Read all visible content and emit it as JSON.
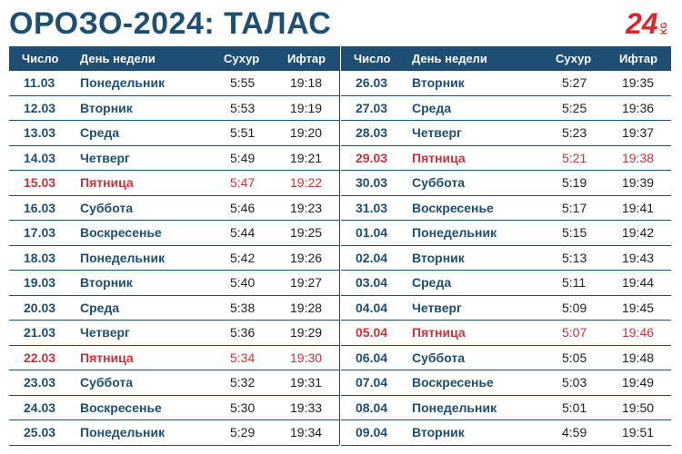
{
  "title": "ОРОЗО-2024: ТАЛАС",
  "logo": {
    "text": "24",
    "suffix": "KG",
    "color": "#d9272e"
  },
  "colors": {
    "header_bg": "#1e4e74",
    "primary": "#1d4f73",
    "highlight": "#c8323c"
  },
  "columns": {
    "date": "Число",
    "day": "День недели",
    "suhur": "Сухур",
    "iftar": "Ифтар"
  },
  "left": [
    {
      "date": "11.03",
      "day": "Понедельник",
      "suhur": "5:55",
      "iftar": "19:18",
      "highlight": false
    },
    {
      "date": "12.03",
      "day": "Вторник",
      "suhur": "5:53",
      "iftar": "19:19",
      "highlight": false
    },
    {
      "date": "13.03",
      "day": "Среда",
      "suhur": "5:51",
      "iftar": "19:20",
      "highlight": false
    },
    {
      "date": "14.03",
      "day": "Четверг",
      "suhur": "5:49",
      "iftar": "19:21",
      "highlight": false
    },
    {
      "date": "15.03",
      "day": "Пятница",
      "suhur": "5:47",
      "iftar": "19:22",
      "highlight": true
    },
    {
      "date": "16.03",
      "day": "Суббота",
      "suhur": "5:46",
      "iftar": "19:23",
      "highlight": false
    },
    {
      "date": "17.03",
      "day": "Воскресенье",
      "suhur": "5:44",
      "iftar": "19:25",
      "highlight": false
    },
    {
      "date": "18.03",
      "day": "Понедельник",
      "suhur": "5:42",
      "iftar": "19:26",
      "highlight": false
    },
    {
      "date": "19.03",
      "day": "Вторник",
      "suhur": "5:40",
      "iftar": "19:27",
      "highlight": false
    },
    {
      "date": "20.03",
      "day": "Среда",
      "suhur": "5:38",
      "iftar": "19:28",
      "highlight": false
    },
    {
      "date": "21.03",
      "day": "Четверг",
      "suhur": "5:36",
      "iftar": "19:29",
      "highlight": false
    },
    {
      "date": "22.03",
      "day": "Пятница",
      "suhur": "5:34",
      "iftar": "19:30",
      "highlight": true
    },
    {
      "date": "23.03",
      "day": "Суббота",
      "suhur": "5:32",
      "iftar": "19:31",
      "highlight": false
    },
    {
      "date": "24.03",
      "day": "Воскресенье",
      "suhur": "5:30",
      "iftar": "19:33",
      "highlight": false
    },
    {
      "date": "25.03",
      "day": "Понедельник",
      "suhur": "5:29",
      "iftar": "19:34",
      "highlight": false
    }
  ],
  "right": [
    {
      "date": "26.03",
      "day": "Вторник",
      "suhur": "5:27",
      "iftar": "19:35",
      "highlight": false
    },
    {
      "date": "27.03",
      "day": "Среда",
      "suhur": "5:25",
      "iftar": "19:36",
      "highlight": false
    },
    {
      "date": "28.03",
      "day": "Четверг",
      "suhur": "5:23",
      "iftar": "19:37",
      "highlight": false
    },
    {
      "date": "29.03",
      "day": "Пятница",
      "suhur": "5:21",
      "iftar": "19:38",
      "highlight": true
    },
    {
      "date": "30.03",
      "day": "Суббота",
      "suhur": "5:19",
      "iftar": "19:39",
      "highlight": false
    },
    {
      "date": "31.03",
      "day": "Воскресенье",
      "suhur": "5:17",
      "iftar": "19:41",
      "highlight": false
    },
    {
      "date": "01.04",
      "day": "Понедельник",
      "suhur": "5:15",
      "iftar": "19:42",
      "highlight": false
    },
    {
      "date": "02.04",
      "day": "Вторник",
      "suhur": "5:13",
      "iftar": "19:43",
      "highlight": false
    },
    {
      "date": "03.04",
      "day": "Среда",
      "suhur": "5:11",
      "iftar": "19:44",
      "highlight": false
    },
    {
      "date": "04.04",
      "day": "Четверг",
      "suhur": "5:09",
      "iftar": "19:45",
      "highlight": false
    },
    {
      "date": "05.04",
      "day": "Пятница",
      "suhur": "5:07",
      "iftar": "19:46",
      "highlight": true
    },
    {
      "date": "06.04",
      "day": "Суббота",
      "suhur": "5:05",
      "iftar": "19:48",
      "highlight": false
    },
    {
      "date": "07.04",
      "day": "Воскресенье",
      "suhur": "5:03",
      "iftar": "19:49",
      "highlight": false
    },
    {
      "date": "08.04",
      "day": "Понедельник",
      "suhur": "5:01",
      "iftar": "19:50",
      "highlight": false
    },
    {
      "date": "09.04",
      "day": "Вторник",
      "suhur": "4:59",
      "iftar": "19:51",
      "highlight": false
    }
  ]
}
